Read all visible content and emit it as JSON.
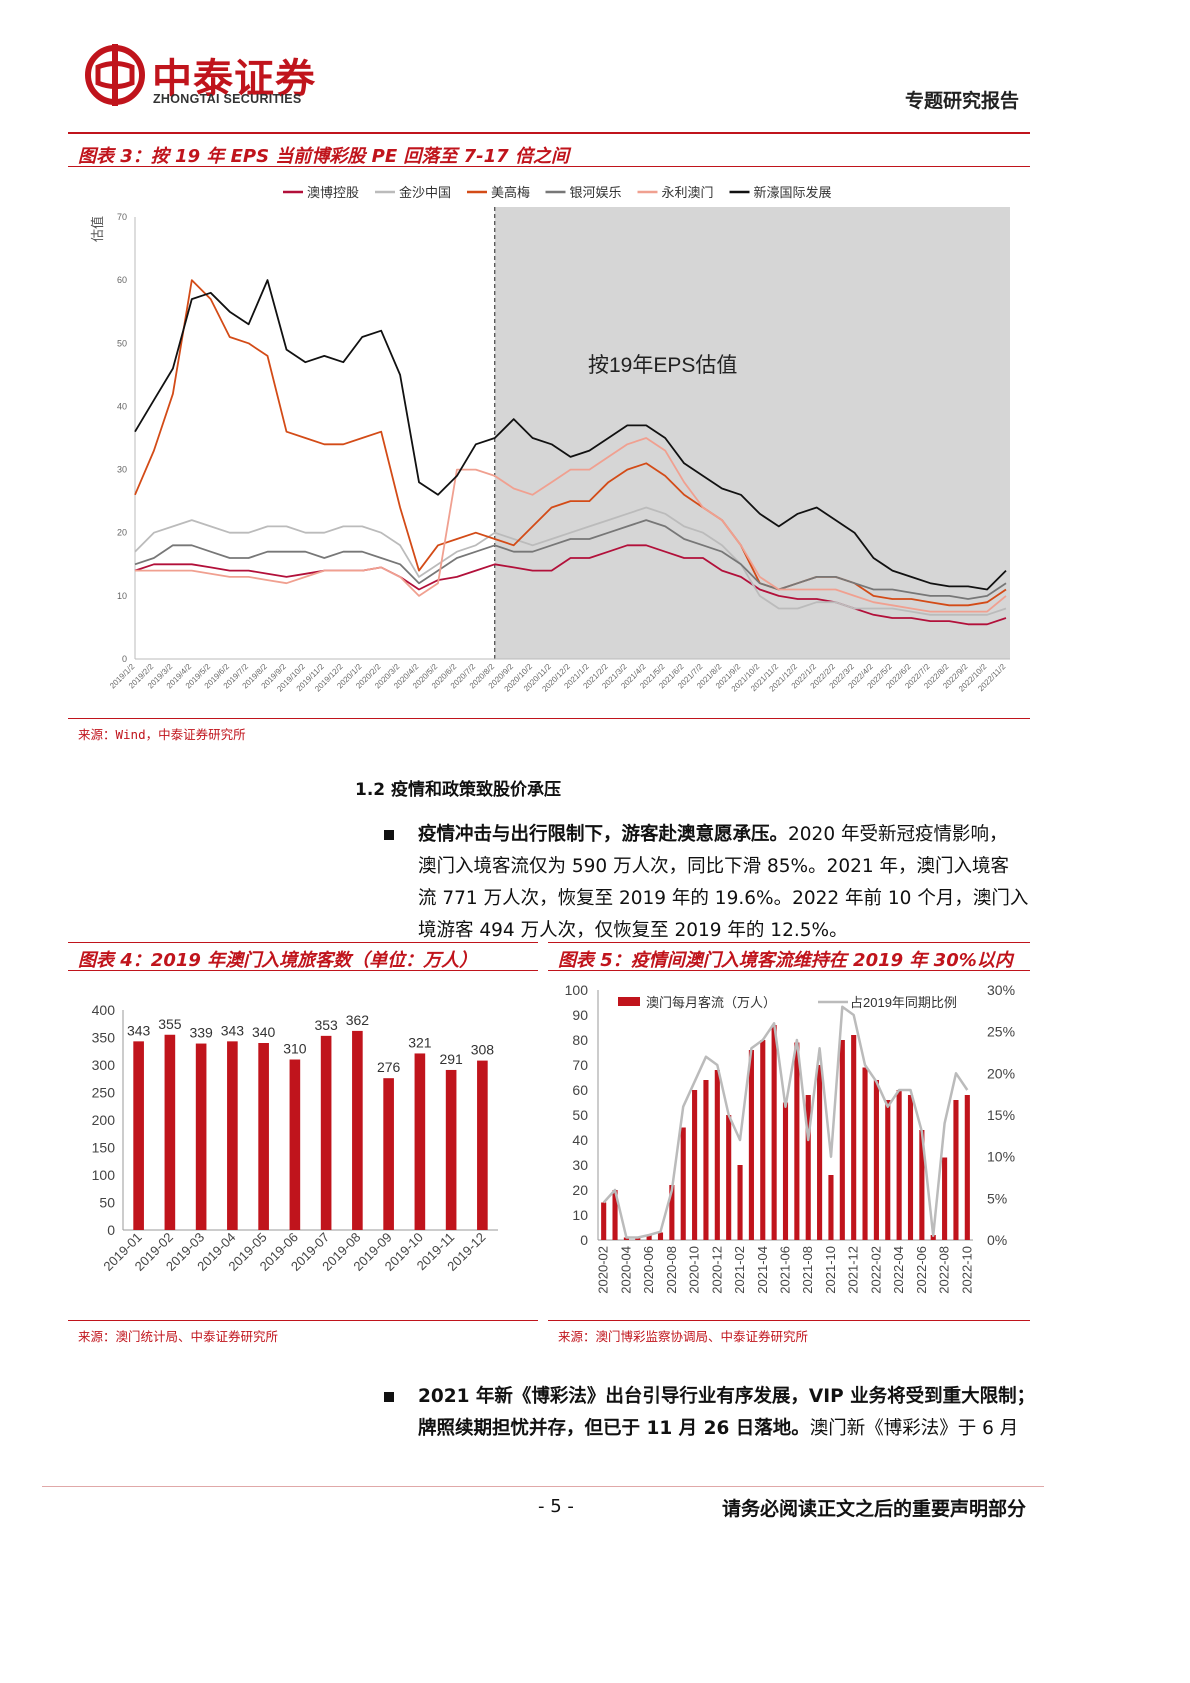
{
  "header": {
    "brand_cn": "中泰证券",
    "brand_en": "ZHONGTAI SECURITIES",
    "report_tag": "专题研究报告"
  },
  "figure3": {
    "title": "图表 3：按 19 年 EPS 当前博彩股 PE 回落至 7-17 倍之间",
    "source": "来源：Wind，中泰证券研究所",
    "chart_data": {
      "type": "line",
      "ylabel": "估值",
      "ylim": [
        0,
        70
      ],
      "yticks": [
        0,
        10,
        20,
        30,
        40,
        50,
        60,
        70
      ],
      "x": [
        "2019/1/2",
        "2019/2/2",
        "2019/3/2",
        "2019/4/2",
        "2019/5/2",
        "2019/6/2",
        "2019/7/2",
        "2019/8/2",
        "2019/9/2",
        "2019/10/2",
        "2019/11/2",
        "2019/12/2",
        "2020/1/2",
        "2020/2/2",
        "2020/3/2",
        "2020/4/2",
        "2020/5/2",
        "2020/6/2",
        "2020/7/2",
        "2020/8/2",
        "2020/9/2",
        "2020/10/2",
        "2020/11/2",
        "2020/12/2",
        "2021/1/2",
        "2021/2/2",
        "2021/3/2",
        "2021/4/2",
        "2021/5/2",
        "2021/6/2",
        "2021/7/2",
        "2021/8/2",
        "2021/9/2",
        "2021/10/2",
        "2021/11/2",
        "2021/12/2",
        "2022/1/2",
        "2022/2/2",
        "2022/3/2",
        "2022/4/2",
        "2022/5/2",
        "2022/6/2",
        "2022/7/2",
        "2022/8/2",
        "2022/9/2",
        "2022/10/2",
        "2022/11/2"
      ],
      "annotation": "按19年EPS估值",
      "shade_start": "2020/8/2",
      "legend_position": "top",
      "series": [
        {
          "name": "澳博控股",
          "color": "#b2103a",
          "values": [
            14,
            15,
            15,
            15,
            14.5,
            14,
            14,
            13.5,
            13,
            13.5,
            14,
            14,
            14,
            14.5,
            13,
            11,
            12.5,
            13,
            14,
            15,
            14.5,
            14,
            14,
            16,
            16,
            17,
            18,
            18,
            17,
            16,
            16,
            14,
            13,
            11,
            10,
            9.5,
            9.5,
            9,
            8,
            7,
            6.5,
            6.5,
            6,
            6,
            5.5,
            5.5,
            6.5
          ]
        },
        {
          "name": "金沙中国",
          "color": "#bbbbbb",
          "values": [
            17,
            20,
            21,
            22,
            21,
            20,
            20,
            21,
            21,
            20,
            20,
            21,
            21,
            20,
            18,
            13,
            15,
            17,
            18,
            20,
            19,
            18,
            19,
            20,
            21,
            22,
            23,
            24,
            23,
            21,
            20,
            18,
            15,
            10,
            8,
            8,
            9,
            9,
            8,
            8,
            8,
            7.5,
            7,
            7,
            7,
            7,
            8
          ]
        },
        {
          "name": "美高梅",
          "color": "#d34b17",
          "values": [
            26,
            33,
            42,
            60,
            57,
            51,
            50,
            48,
            36,
            35,
            34,
            34,
            35,
            36,
            24,
            14,
            18,
            19,
            20,
            19,
            18,
            21,
            24,
            25,
            25,
            28,
            30,
            31,
            29,
            26,
            24,
            22,
            18,
            12,
            11,
            12,
            13,
            13,
            12,
            10,
            9.5,
            9.5,
            9,
            8.5,
            8.5,
            9,
            11
          ]
        },
        {
          "name": "银河娱乐",
          "color": "#777777",
          "values": [
            15,
            16,
            18,
            18,
            17,
            16,
            16,
            17,
            17,
            17,
            16,
            17,
            17,
            16,
            15,
            12,
            14,
            16,
            17,
            18,
            17,
            17,
            18,
            19,
            19,
            20,
            21,
            22,
            21,
            19,
            18,
            17,
            15,
            12,
            11,
            12,
            13,
            13,
            12,
            11,
            11,
            10.5,
            10,
            10,
            9.5,
            10,
            12
          ]
        },
        {
          "name": "永利澳门",
          "color": "#f0a090",
          "values": [
            14,
            14,
            14,
            14,
            13.5,
            13,
            13,
            12.5,
            12,
            13,
            14,
            14,
            14,
            14.5,
            13,
            10,
            12,
            30,
            30,
            29,
            27,
            26,
            28,
            30,
            30,
            32,
            34,
            35,
            33,
            28,
            24,
            22,
            18,
            13,
            11,
            11,
            11,
            11,
            10,
            9,
            8.5,
            8,
            7.5,
            7.5,
            7.5,
            7.5,
            10
          ]
        },
        {
          "name": "新濠国际发展",
          "color": "#111111",
          "values": [
            36,
            41,
            46,
            57,
            58,
            55,
            53,
            60,
            49,
            47,
            48,
            47,
            51,
            52,
            45,
            28,
            26,
            29,
            34,
            35,
            38,
            35,
            34,
            32,
            33,
            35,
            37,
            37,
            35,
            31,
            29,
            27,
            26,
            23,
            21,
            23,
            24,
            22,
            20,
            16,
            14,
            13,
            12,
            11.5,
            11.5,
            11,
            14
          ]
        }
      ]
    }
  },
  "section": {
    "heading": "1.2  疫情和政策致股价承压",
    "p1_bold": "疫情冲击与出行限制下，游客赴澳意愿承压。",
    "p1_line1": "2020 年受新冠疫情影响，",
    "p1_line2": "澳门入境客流仅为 590 万人次，同比下滑 85%。2021 年，澳门入境客",
    "p1_line3": "流 771 万人次，恢复至 2019 年的 19.6%。2022 年前 10 个月，澳门入",
    "p1_line4": "境游客 494 万人次，仅恢复至 2019 年的 12.5%。"
  },
  "figure4": {
    "title": "图表 4：2019 年澳门入境旅客数（单位：万人）",
    "source": "来源：澳门统计局、中泰证券研究所",
    "chart_data": {
      "type": "bar",
      "categories": [
        "2019-01",
        "2019-02",
        "2019-03",
        "2019-04",
        "2019-05",
        "2019-06",
        "2019-07",
        "2019-08",
        "2019-09",
        "2019-10",
        "2019-11",
        "2019-12"
      ],
      "values": [
        343,
        355,
        339,
        343,
        340,
        310,
        353,
        362,
        276,
        321,
        291,
        308
      ],
      "ylim": [
        0,
        400
      ],
      "yticks": [
        0,
        50,
        100,
        150,
        200,
        250,
        300,
        350,
        400
      ],
      "color": "#c0141c"
    }
  },
  "figure5": {
    "title": "图表 5：疫情间澳门入境客流维持在 2019 年 30%以内",
    "source": "来源：澳门博彩监察协调局、中泰证券研究所",
    "chart_data": {
      "type": "bar",
      "categories": [
        "2020-02",
        "2020-03",
        "2020-04",
        "2020-05",
        "2020-06",
        "2020-07",
        "2020-08",
        "2020-09",
        "2020-10",
        "2020-11",
        "2020-12",
        "2021-01",
        "2021-02",
        "2021-03",
        "2021-04",
        "2021-05",
        "2021-06",
        "2021-07",
        "2021-08",
        "2021-09",
        "2021-10",
        "2021-11",
        "2021-12",
        "2022-01",
        "2022-02",
        "2022-03",
        "2022-04",
        "2022-05",
        "2022-06",
        "2022-07",
        "2022-08",
        "2022-09",
        "2022-10"
      ],
      "tick_labels": [
        "2020-02",
        "2020-04",
        "2020-06",
        "2020-08",
        "2020-10",
        "2020-12",
        "2021-02",
        "2021-04",
        "2021-06",
        "2021-08",
        "2021-10",
        "2021-12",
        "2022-02",
        "2022-04",
        "2022-06",
        "2022-08",
        "2022-10"
      ],
      "ylim_left": [
        0,
        100
      ],
      "yticks_left": [
        0,
        10,
        20,
        30,
        40,
        50,
        60,
        70,
        80,
        90,
        100
      ],
      "ylim_right": [
        0,
        30
      ],
      "yticks_right": [
        "0%",
        "5%",
        "10%",
        "15%",
        "20%",
        "25%",
        "30%"
      ],
      "series": [
        {
          "name": "澳门每月客流（万人）",
          "kind": "bar",
          "axis": "left",
          "color": "#c0141c",
          "values": [
            15,
            20,
            1,
            1,
            2,
            3,
            22,
            45,
            60,
            64,
            68,
            50,
            30,
            76,
            80,
            86,
            55,
            79,
            58,
            70,
            26,
            80,
            82,
            69,
            64,
            56,
            60,
            58,
            44,
            2,
            33,
            56,
            58
          ]
        },
        {
          "name": "占2019年同期比例",
          "kind": "line",
          "axis": "right",
          "color": "#bbbbbb",
          "values": [
            4.5,
            6,
            0.3,
            0.3,
            0.6,
            1,
            6,
            16,
            19,
            22,
            21,
            15,
            12,
            23,
            24,
            26,
            16,
            24,
            12,
            23,
            10,
            28,
            27,
            21,
            19,
            16,
            18,
            18,
            13,
            0.5,
            14,
            20,
            18
          ]
        }
      ]
    }
  },
  "section2": {
    "p2_bold_line1": "2021 年新《博彩法》出台引导行业有序发展，VIP 业务将受到重大限制；",
    "p2_bold_line2": "牌照续期担忧并存，但已于 11 月 26 日落地。",
    "p2_tail": "澳门新《博彩法》于 6 月"
  },
  "footer": {
    "page": "- 5 -",
    "notice": "请务必阅读正文之后的重要声明部分"
  }
}
